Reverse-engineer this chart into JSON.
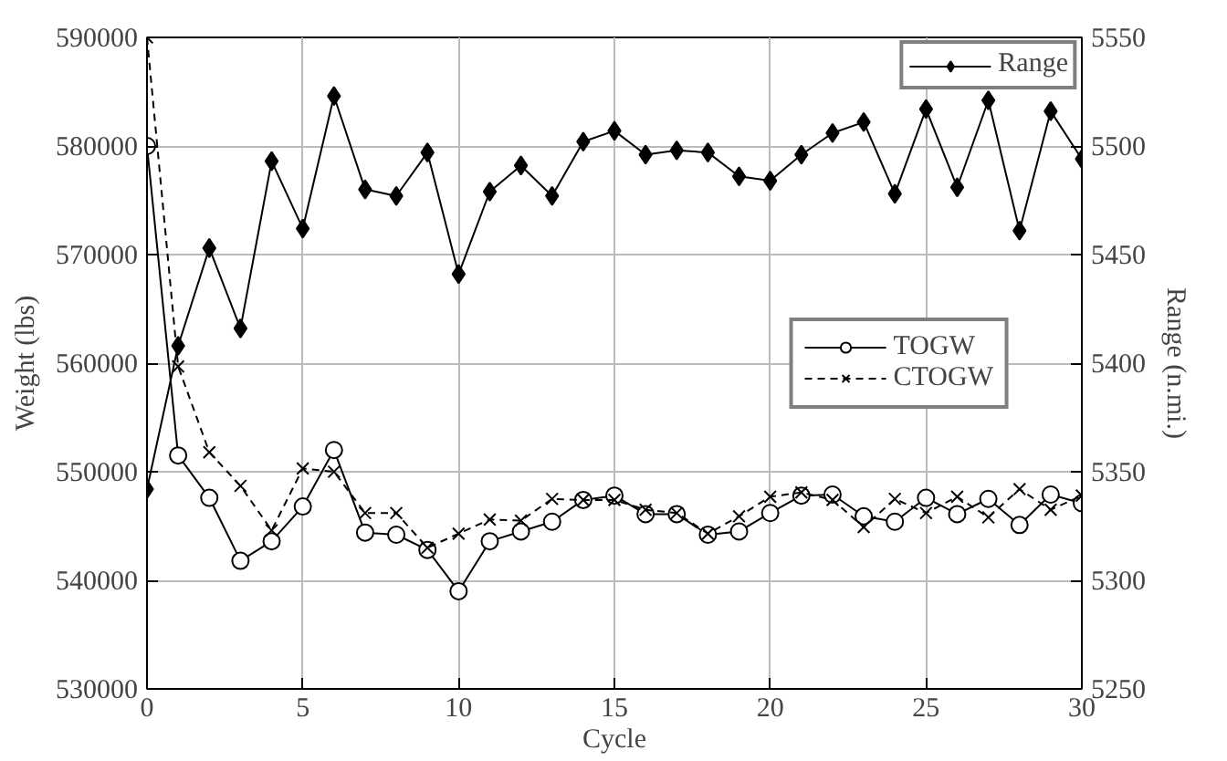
{
  "chart_data": {
    "type": "line",
    "xlabel": "Cycle",
    "ylabel": "Weight (lbs)",
    "y2label": "Range (n.mi.)",
    "x": [
      0,
      1,
      2,
      3,
      4,
      5,
      6,
      7,
      8,
      9,
      10,
      11,
      12,
      13,
      14,
      15,
      16,
      17,
      18,
      19,
      20,
      21,
      22,
      23,
      24,
      25,
      26,
      27,
      28,
      29,
      30
    ],
    "xlim": [
      0,
      30
    ],
    "xticks": [
      0,
      5,
      10,
      15,
      20,
      25,
      30
    ],
    "ylim": [
      530000,
      590000
    ],
    "yticks": [
      530000,
      540000,
      550000,
      560000,
      570000,
      580000,
      590000
    ],
    "y2lim": [
      5250,
      5550
    ],
    "y2ticks": [
      5250,
      5300,
      5350,
      5400,
      5450,
      5500,
      5550
    ],
    "grid": true,
    "legend": "top right",
    "series": [
      {
        "name": "Range",
        "color": "#000000",
        "axis": "y2",
        "marker": "diamond",
        "line_style": "solid",
        "values": [
          5342,
          5408,
          5453,
          5416,
          5493,
          5462,
          5523,
          5480,
          5477,
          5497,
          5441,
          5479,
          5491,
          5477,
          5502,
          5507,
          5496,
          5498,
          5497,
          5486,
          5484,
          5496,
          5506,
          5511,
          5478,
          5517,
          5481,
          5521,
          5461,
          5516,
          5494
        ]
      },
      {
        "name": "TOGW",
        "color": "#000000",
        "marker": "circle",
        "line_style": "solid",
        "values": [
          580000,
          551500,
          547600,
          541800,
          543600,
          546800,
          552000,
          544400,
          544200,
          542800,
          539000,
          543600,
          544500,
          545400,
          547400,
          547800,
          546100,
          546100,
          544200,
          544500,
          546200,
          547800,
          547900,
          545900,
          545400,
          547600,
          546100,
          547500,
          545100,
          547900,
          547100
        ]
      },
      {
        "name": "CTOGW",
        "color": "#000000",
        "marker": "cross",
        "line_style": "dashed",
        "values": [
          590000,
          559700,
          551800,
          548700,
          544600,
          550300,
          550000,
          546200,
          546200,
          543000,
          544300,
          545600,
          545500,
          547500,
          547400,
          547400,
          546500,
          546200,
          544300,
          545900,
          547700,
          548100,
          547400,
          544900,
          547500,
          546200,
          547700,
          545800,
          548400,
          546500,
          547800
        ]
      }
    ]
  }
}
